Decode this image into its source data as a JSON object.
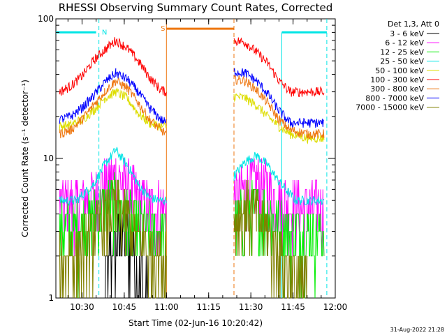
{
  "chart_data": {
    "type": "line",
    "title": "RHESSI Observing Summary Count Rates, Corrected",
    "xlabel": "Start Time (02-Jun-16 10:20:42)",
    "ylabel": "Corrected Count Rate (s⁻¹ detector⁻¹)",
    "y_scale": "log",
    "ylim": [
      1,
      100
    ],
    "xlim": [
      "10:20:42",
      "12:00"
    ],
    "x_ticks": [
      "10:30",
      "10:45",
      "11:00",
      "11:15",
      "11:30",
      "11:45",
      "12:00"
    ],
    "y_ticks": [
      "1",
      "10",
      "100"
    ],
    "grid": false,
    "legend_position": "top-right",
    "legend_header": "Det 1,3, Att 0",
    "timestamp": "31-Aug-2022 21:28",
    "gaps": [
      {
        "start": "11:00",
        "end": "11:24"
      }
    ],
    "markers": [
      {
        "label": "N",
        "color": "#00e5e5",
        "bars": [
          [
            "10:20:42",
            "10:35"
          ],
          [
            "11:41",
            "11:57"
          ]
        ],
        "lines": [
          "10:36",
          "11:57"
        ],
        "level": 80
      },
      {
        "label": "S",
        "color": "#ee7711",
        "bars": [
          [
            "11:00",
            "11:24"
          ]
        ],
        "lines": [
          "11:00",
          "11:24"
        ],
        "level": 85
      }
    ],
    "series": [
      {
        "name": "3 - 6 keV",
        "color": "#000000",
        "points": [
          [
            "10:38",
            1.2
          ],
          [
            "10:40",
            2.0
          ],
          [
            "10:42",
            2.5
          ],
          [
            "10:44",
            2.8
          ],
          [
            "10:46",
            2.6
          ],
          [
            "10:48",
            2.2
          ],
          [
            "10:50",
            1.6
          ],
          [
            "10:52",
            1.2
          ],
          [
            "10:54",
            1.0
          ]
        ]
      },
      {
        "name": "6 - 12 keV",
        "color": "#ff00ff",
        "points": [
          [
            "10:22",
            4.8
          ],
          [
            "10:28",
            4.8
          ],
          [
            "10:34",
            5.5
          ],
          [
            "10:38",
            6.5
          ],
          [
            "10:42",
            7.5
          ],
          [
            "10:46",
            6.5
          ],
          [
            "10:50",
            5.0
          ],
          [
            "10:54",
            4.5
          ],
          [
            "10:58",
            4.5
          ],
          [
            "11:00",
            4.5
          ],
          [
            "11:24",
            5.2
          ],
          [
            "11:28",
            6.0
          ],
          [
            "11:32",
            7.0
          ],
          [
            "11:36",
            6.2
          ],
          [
            "11:40",
            5.0
          ],
          [
            "11:46",
            4.6
          ],
          [
            "11:50",
            4.5
          ],
          [
            "11:56",
            4.6
          ]
        ]
      },
      {
        "name": "12 - 25 keV",
        "color": "#00ee00",
        "points": [
          [
            "10:22",
            3.0
          ],
          [
            "10:28",
            3.2
          ],
          [
            "10:34",
            3.8
          ],
          [
            "10:38",
            4.5
          ],
          [
            "10:42",
            5.0
          ],
          [
            "10:46",
            4.2
          ],
          [
            "10:50",
            3.2
          ],
          [
            "10:54",
            3.0
          ],
          [
            "10:58",
            3.0
          ],
          [
            "11:00",
            3.0
          ],
          [
            "11:24",
            3.5
          ],
          [
            "11:28",
            4.0
          ],
          [
            "11:32",
            4.5
          ],
          [
            "11:36",
            4.0
          ],
          [
            "11:40",
            3.2
          ],
          [
            "11:46",
            3.0
          ],
          [
            "11:50",
            3.0
          ],
          [
            "11:56",
            3.0
          ]
        ]
      },
      {
        "name": "25 - 50 keV",
        "color": "#00e5e5",
        "points": [
          [
            "10:22",
            5.0
          ],
          [
            "10:28",
            5.0
          ],
          [
            "10:34",
            6.5
          ],
          [
            "10:38",
            9.0
          ],
          [
            "10:42",
            11.5
          ],
          [
            "10:46",
            9.0
          ],
          [
            "10:50",
            6.5
          ],
          [
            "10:54",
            5.2
          ],
          [
            "10:58",
            5.0
          ],
          [
            "11:00",
            5.0
          ],
          [
            "11:24",
            7.5
          ],
          [
            "11:28",
            9.5
          ],
          [
            "11:32",
            10.5
          ],
          [
            "11:36",
            9.0
          ],
          [
            "11:40",
            6.8
          ],
          [
            "11:46",
            5.0
          ],
          [
            "11:50",
            5.0
          ],
          [
            "11:56",
            5.0
          ]
        ]
      },
      {
        "name": "50 - 100 keV",
        "color": "#dddd00",
        "points": [
          [
            "10:22",
            17
          ],
          [
            "10:26",
            17.5
          ],
          [
            "10:30",
            19
          ],
          [
            "10:34",
            22
          ],
          [
            "10:38",
            27
          ],
          [
            "10:42",
            30
          ],
          [
            "10:46",
            27
          ],
          [
            "10:50",
            21
          ],
          [
            "10:54",
            18
          ],
          [
            "10:58",
            17
          ],
          [
            "11:00",
            17
          ],
          [
            "11:24",
            28
          ],
          [
            "11:28",
            27
          ],
          [
            "11:32",
            24
          ],
          [
            "11:36",
            20
          ],
          [
            "11:40",
            17
          ],
          [
            "11:44",
            15
          ],
          [
            "11:50",
            14
          ],
          [
            "11:56",
            14
          ]
        ]
      },
      {
        "name": "100 - 300 keV",
        "color": "#ff0000",
        "points": [
          [
            "10:22",
            30
          ],
          [
            "10:26",
            33
          ],
          [
            "10:30",
            39
          ],
          [
            "10:34",
            50
          ],
          [
            "10:38",
            60
          ],
          [
            "10:42",
            70
          ],
          [
            "10:46",
            62
          ],
          [
            "10:50",
            50
          ],
          [
            "10:54",
            38
          ],
          [
            "10:58",
            31
          ],
          [
            "11:00",
            30
          ],
          [
            "11:24",
            70
          ],
          [
            "11:28",
            68
          ],
          [
            "11:32",
            58
          ],
          [
            "11:36",
            48
          ],
          [
            "11:40",
            36
          ],
          [
            "11:44",
            30
          ],
          [
            "11:50",
            30
          ],
          [
            "11:56",
            30
          ]
        ]
      },
      {
        "name": "300 - 800 keV",
        "color": "#ee7711",
        "points": [
          [
            "10:22",
            15
          ],
          [
            "10:26",
            16
          ],
          [
            "10:30",
            19
          ],
          [
            "10:34",
            24
          ],
          [
            "10:38",
            30
          ],
          [
            "10:42",
            36
          ],
          [
            "10:46",
            32
          ],
          [
            "10:50",
            25
          ],
          [
            "10:54",
            19
          ],
          [
            "10:58",
            16
          ],
          [
            "11:00",
            15
          ],
          [
            "11:24",
            37
          ],
          [
            "11:28",
            36
          ],
          [
            "11:32",
            31
          ],
          [
            "11:36",
            25
          ],
          [
            "11:40",
            19
          ],
          [
            "11:44",
            16
          ],
          [
            "11:50",
            15
          ],
          [
            "11:56",
            15
          ]
        ]
      },
      {
        "name": "800 - 7000 keV",
        "color": "#0000ff",
        "points": [
          [
            "10:22",
            19
          ],
          [
            "10:26",
            20
          ],
          [
            "10:30",
            23
          ],
          [
            "10:34",
            28
          ],
          [
            "10:38",
            35
          ],
          [
            "10:42",
            41
          ],
          [
            "10:46",
            37
          ],
          [
            "10:50",
            30
          ],
          [
            "10:54",
            23
          ],
          [
            "10:58",
            19
          ],
          [
            "11:00",
            18
          ],
          [
            "11:24",
            42
          ],
          [
            "11:28",
            41
          ],
          [
            "11:32",
            36
          ],
          [
            "11:36",
            29
          ],
          [
            "11:40",
            22
          ],
          [
            "11:44",
            18
          ],
          [
            "11:50",
            18
          ],
          [
            "11:56",
            18
          ]
        ]
      },
      {
        "name": "7000 - 15000 keV",
        "color": "#808000",
        "points": [
          [
            "10:22",
            1.8
          ],
          [
            "10:28",
            2.2
          ],
          [
            "10:34",
            3.0
          ],
          [
            "10:38",
            3.8
          ],
          [
            "10:42",
            4.5
          ],
          [
            "10:46",
            3.8
          ],
          [
            "10:50",
            2.8
          ],
          [
            "10:54",
            2.2
          ],
          [
            "10:58",
            2.0
          ],
          [
            "11:00",
            2.0
          ],
          [
            "11:24",
            3.5
          ],
          [
            "11:28",
            4.5
          ],
          [
            "11:32",
            4.0
          ],
          [
            "11:36",
            3.0
          ],
          [
            "11:40",
            2.2
          ],
          [
            "11:44",
            1.5
          ],
          [
            "11:50",
            1.2
          ]
        ]
      }
    ]
  }
}
